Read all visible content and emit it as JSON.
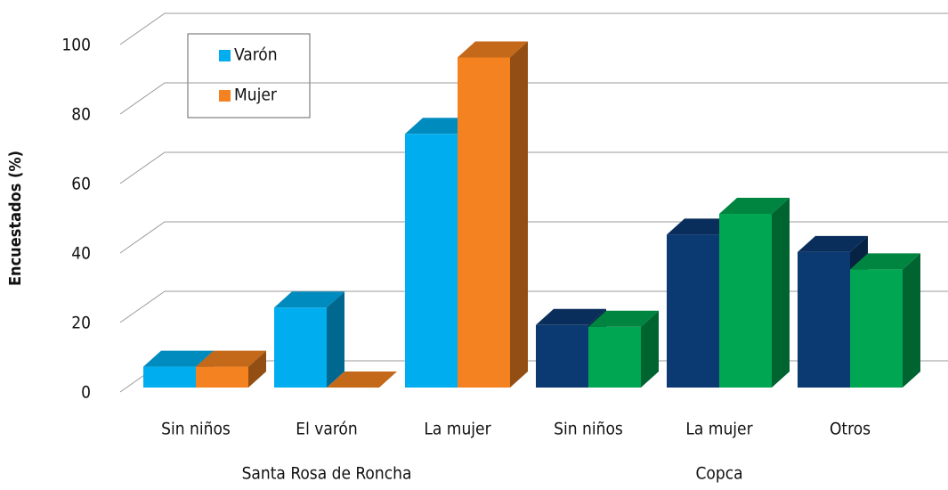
{
  "chart_data": {
    "type": "bar3d",
    "y_label": "Encuestados (%)",
    "groups": [
      {
        "name": "Santa Rosa de Roncha",
        "categories": [
          "Sin niños",
          "El varón",
          "La mujer"
        ]
      },
      {
        "name": "Copca",
        "categories": [
          "Sin niños",
          "La mujer",
          "Otros"
        ]
      }
    ],
    "series": [
      {
        "name": "Varón",
        "colors": [
          "#00aeef",
          "#0b3a72"
        ],
        "values": [
          6,
          23,
          73,
          18,
          44,
          39
        ]
      },
      {
        "name": "Mujer",
        "colors": [
          "#f58220",
          "#00a651"
        ],
        "values": [
          6,
          0,
          95,
          17.5,
          50,
          34
        ]
      }
    ],
    "ylim": [
      0,
      100
    ],
    "yticks": [
      0,
      20,
      40,
      60,
      80,
      100
    ],
    "grid": true
  }
}
